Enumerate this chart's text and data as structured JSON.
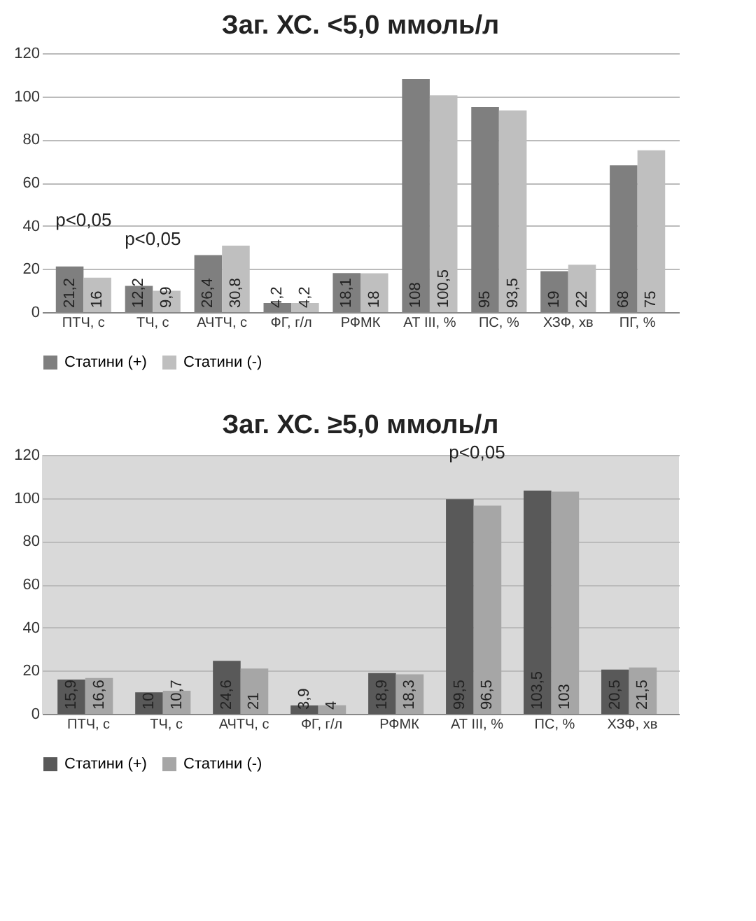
{
  "chart_data": [
    {
      "type": "bar",
      "title": "Заг. ХС. <5,0 ммоль/л",
      "categories": [
        "ПТЧ, с",
        "ТЧ, с",
        "АЧТЧ, с",
        "ФГ, г/л",
        "РФМК",
        "АТ III, %",
        "ПС, %",
        "ХЗФ, хв",
        "ПГ, %"
      ],
      "series": [
        {
          "name": "Статини (+)",
          "color": "#7f7f7f",
          "values": [
            21.2,
            12.2,
            26.4,
            4.2,
            18.1,
            108,
            95,
            19,
            68
          ],
          "value_labels": [
            "21,2",
            "12,2",
            "26,4",
            "4,2",
            "18,1",
            "108",
            "95",
            "19",
            "68"
          ]
        },
        {
          "name": "Статини (-)",
          "color": "#bfbfbf",
          "values": [
            16,
            9.9,
            30.8,
            4.2,
            18,
            100.5,
            93.5,
            22,
            75
          ],
          "value_labels": [
            "16",
            "9,9",
            "30,8",
            "4,2",
            "18",
            "100,5",
            "93,5",
            "22",
            "75"
          ]
        }
      ],
      "ylim": [
        0,
        120
      ],
      "yticks": [
        0,
        20,
        40,
        60,
        80,
        100,
        120
      ],
      "grid": "y",
      "legend": "bottom",
      "annotations": [
        {
          "text": "p<0,05",
          "x": "ПТЧ, с",
          "y": 21.2
        },
        {
          "text": "p<0,05",
          "x": "ТЧ, с",
          "y": 12.2
        }
      ]
    },
    {
      "type": "bar",
      "title": "Заг. ХС. ≥5,0 ммоль/л",
      "categories": [
        "ПТЧ, с",
        "ТЧ, с",
        "АЧТЧ, с",
        "ФГ, г/л",
        "РФМК",
        "АТ III, %",
        "ПС, %",
        "ХЗФ, хв"
      ],
      "series": [
        {
          "name": "Статини (+)",
          "color": "#595959",
          "values": [
            15.9,
            10,
            24.6,
            3.9,
            18.9,
            99.5,
            103.5,
            20.5
          ],
          "value_labels": [
            "15,9",
            "10",
            "24,6",
            "3,9",
            "18,9",
            "99,5",
            "103,5",
            "20,5"
          ]
        },
        {
          "name": "Статини (-)",
          "color": "#a6a6a6",
          "values": [
            16.6,
            10.7,
            21,
            4,
            18.3,
            96.5,
            103,
            21.5
          ],
          "value_labels": [
            "16,6",
            "10,7",
            "21",
            "4",
            "18,3",
            "96,5",
            "103",
            "21,5"
          ]
        }
      ],
      "ylim": [
        0,
        120
      ],
      "yticks": [
        0,
        20,
        40,
        60,
        80,
        100,
        120
      ],
      "grid": "y",
      "legend": "bottom",
      "annotations": [
        {
          "text": "p<0,05",
          "x": "АТ III, %",
          "y": 99.5
        }
      ]
    }
  ]
}
